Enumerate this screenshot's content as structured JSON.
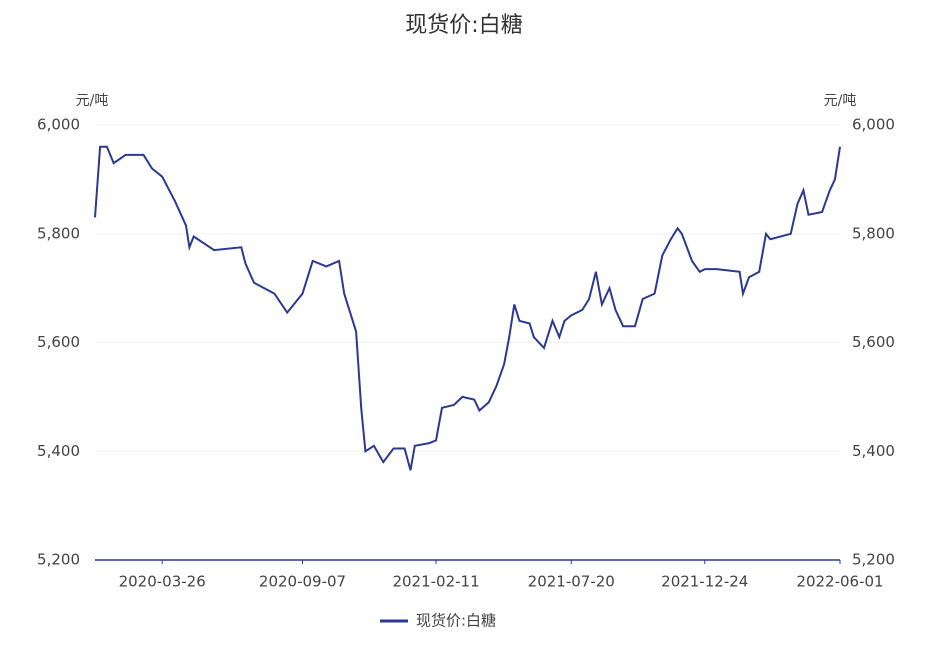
{
  "chart_data": {
    "type": "line",
    "title": "现货价:白糖",
    "y_label": "元/吨",
    "y2_label": "元/吨",
    "ylim": [
      5200,
      6000
    ],
    "yticks": [
      {
        "value": 5200,
        "label": "5,200"
      },
      {
        "value": 5400,
        "label": "5,400"
      },
      {
        "value": 5600,
        "label": "5,600"
      },
      {
        "value": 5800,
        "label": "5,800"
      },
      {
        "value": 6000,
        "label": "6,000"
      }
    ],
    "y2lim": [
      5200,
      6000
    ],
    "y2ticks": [
      {
        "value": 5200,
        "label": "5,200"
      },
      {
        "value": 5400,
        "label": "5,400"
      },
      {
        "value": 5600,
        "label": "5,600"
      },
      {
        "value": 5800,
        "label": "5,800"
      },
      {
        "value": 6000,
        "label": "6,000"
      }
    ],
    "xlim": [
      "2020-01-07",
      "2022-06-01"
    ],
    "xticks": [
      "2020-03-26",
      "2020-09-07",
      "2021-02-11",
      "2021-07-20",
      "2021-12-24",
      "2022-06-01"
    ],
    "grid": true,
    "legend": "bottom",
    "x": [
      "2020-01-07",
      "2020-01-13",
      "2020-01-21",
      "2020-01-29",
      "2020-02-12",
      "2020-03-04",
      "2020-03-14",
      "2020-03-26",
      "2020-04-10",
      "2020-04-23",
      "2020-04-27",
      "2020-05-02",
      "2020-05-26",
      "2020-06-27",
      "2020-07-02",
      "2020-07-12",
      "2020-08-05",
      "2020-08-20",
      "2020-09-07",
      "2020-09-19",
      "2020-10-05",
      "2020-10-20",
      "2020-10-26",
      "2020-11-09",
      "2020-11-15",
      "2020-11-20",
      "2020-11-30",
      "2020-12-11",
      "2020-12-23",
      "2021-01-05",
      "2021-01-12",
      "2021-01-17",
      "2021-02-03",
      "2021-02-11",
      "2021-02-18",
      "2021-03-04",
      "2021-03-14",
      "2021-03-28",
      "2021-04-03",
      "2021-04-14",
      "2021-04-23",
      "2021-05-02",
      "2021-05-08",
      "2021-05-14",
      "2021-05-20",
      "2021-06-01",
      "2021-06-06",
      "2021-06-18",
      "2021-06-28",
      "2021-07-06",
      "2021-07-12",
      "2021-07-20",
      "2021-08-02",
      "2021-08-10",
      "2021-08-18",
      "2021-08-25",
      "2021-09-03",
      "2021-09-10",
      "2021-09-19",
      "2021-10-03",
      "2021-10-12",
      "2021-10-26",
      "2021-11-04",
      "2021-11-14",
      "2021-11-22",
      "2021-11-27",
      "2021-12-09",
      "2021-12-18",
      "2021-12-24",
      "2022-01-07",
      "2022-02-03",
      "2022-02-07",
      "2022-02-14",
      "2022-02-26",
      "2022-03-06",
      "2022-03-11",
      "2022-04-04",
      "2022-04-12",
      "2022-04-19",
      "2022-04-25",
      "2022-05-11",
      "2022-05-20",
      "2022-05-26",
      "2022-06-01"
    ],
    "series": [
      {
        "name": "现货价:白糖",
        "color": "#2b3990",
        "values": [
          5830,
          5960,
          5960,
          5930,
          5945,
          5945,
          5920,
          5905,
          5860,
          5815,
          5775,
          5795,
          5770,
          5775,
          5745,
          5710,
          5690,
          5655,
          5690,
          5750,
          5740,
          5750,
          5690,
          5620,
          5480,
          5400,
          5410,
          5380,
          5405,
          5405,
          5365,
          5410,
          5415,
          5420,
          5480,
          5485,
          5500,
          5495,
          5475,
          5490,
          5520,
          5560,
          5610,
          5670,
          5640,
          5635,
          5610,
          5590,
          5640,
          5610,
          5640,
          5650,
          5660,
          5680,
          5730,
          5670,
          5700,
          5660,
          5630,
          5630,
          5680,
          5690,
          5760,
          5790,
          5810,
          5800,
          5750,
          5730,
          5735,
          5735,
          5730,
          5690,
          5720,
          5730,
          5800,
          5790,
          5800,
          5855,
          5880,
          5835,
          5840,
          5880,
          5900,
          5960
        ]
      }
    ]
  }
}
